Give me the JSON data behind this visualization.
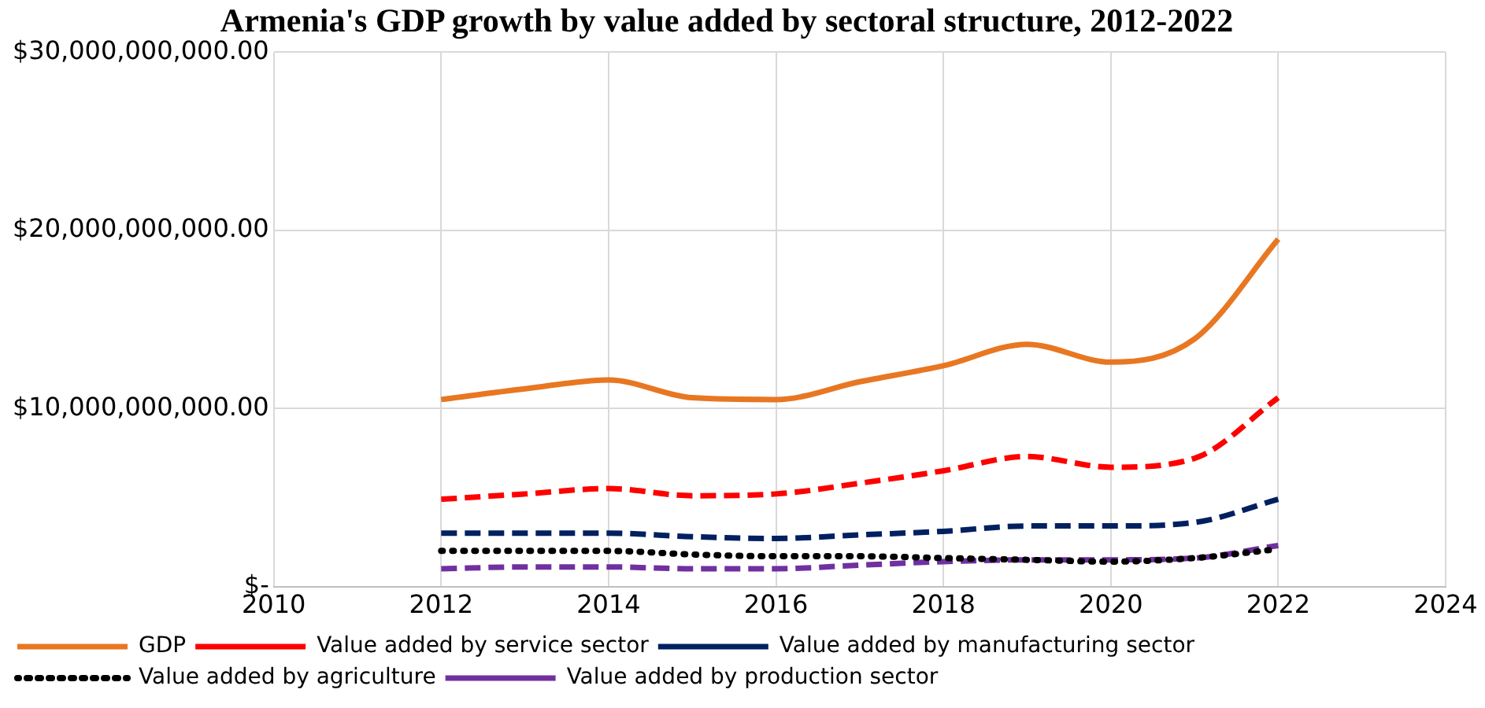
{
  "chart_data": {
    "type": "line",
    "title": "Armenia's GDP growth by value added by sectoral structure, 2012-2022",
    "x": [
      2012,
      2013,
      2014,
      2015,
      2016,
      2017,
      2018,
      2019,
      2020,
      2021,
      2022
    ],
    "series": [
      {
        "name": "GDP",
        "color": "#e87722",
        "line_style": "solid",
        "values": [
          10500000000,
          11100000000,
          11600000000,
          10600000000,
          10500000000,
          11500000000,
          12400000000,
          13600000000,
          12600000000,
          13900000000,
          19500000000
        ]
      },
      {
        "name": "Value added by service sector",
        "color": "#ff0000",
        "line_style": "dashed",
        "values": [
          4900000000,
          5200000000,
          5500000000,
          5100000000,
          5200000000,
          5800000000,
          6500000000,
          7300000000,
          6700000000,
          7200000000,
          10600000000
        ]
      },
      {
        "name": "Value added by manufacturing sector",
        "color": "#002060",
        "line_style": "dashed",
        "values": [
          3000000000,
          3000000000,
          3000000000,
          2800000000,
          2700000000,
          2900000000,
          3100000000,
          3400000000,
          3400000000,
          3600000000,
          4900000000
        ]
      },
      {
        "name": "Value added by agriculture",
        "color": "#000000",
        "line_style": "dotted",
        "values": [
          2000000000,
          2000000000,
          2000000000,
          1800000000,
          1700000000,
          1700000000,
          1600000000,
          1500000000,
          1400000000,
          1600000000,
          2100000000
        ]
      },
      {
        "name": "Value added by production sector",
        "color": "#7030a0",
        "line_style": "dashed",
        "values": [
          1000000000,
          1100000000,
          1100000000,
          1000000000,
          1000000000,
          1200000000,
          1400000000,
          1500000000,
          1500000000,
          1600000000,
          2300000000
        ]
      }
    ],
    "xlim": [
      2010,
      2024
    ],
    "xticks": [
      2010,
      2012,
      2014,
      2016,
      2018,
      2020,
      2022,
      2024
    ],
    "ylim": [
      0,
      30000000000
    ],
    "yticks": [
      {
        "value": 0,
        "label": "$-"
      },
      {
        "value": 10000000000,
        "label": "$10,000,000,000.00"
      },
      {
        "value": 20000000000,
        "label": "$20,000,000,000.00"
      },
      {
        "value": 30000000000,
        "label": "$30,000,000,000.00"
      }
    ],
    "grid": true,
    "legend": "bottom",
    "marker": "none"
  }
}
